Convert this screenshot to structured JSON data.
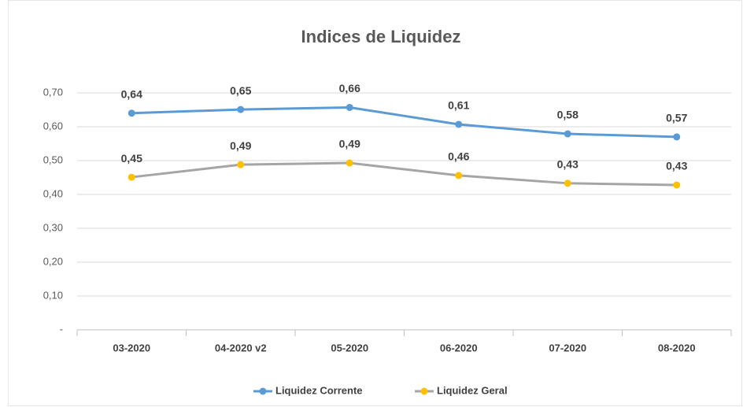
{
  "chart_data": {
    "type": "line",
    "title": "Indices de Liquidez",
    "categories": [
      "03-2020",
      "04-2020 v2",
      "05-2020",
      "06-2020",
      "07-2020",
      "08-2020"
    ],
    "series": [
      {
        "name": "Liquidez Corrente",
        "color": "#5b9bd5",
        "marker_color": "#5b9bd5",
        "values": [
          0.64,
          0.651,
          0.657,
          0.607,
          0.579,
          0.57
        ],
        "value_labels": [
          "0,64",
          "0,65",
          "0,66",
          "0,61",
          "0,58",
          "0,57"
        ]
      },
      {
        "name": "Liquidez Geral",
        "color": "#a5a5a5",
        "marker_color": "#ffc000",
        "values": [
          0.451,
          0.488,
          0.493,
          0.456,
          0.433,
          0.428
        ],
        "value_labels": [
          "0,45",
          "0,49",
          "0,49",
          "0,46",
          "0,43",
          "0,43"
        ]
      }
    ],
    "ylim": [
      0,
      0.7
    ],
    "yticks": [
      {
        "value": 0,
        "label": "-"
      },
      {
        "value": 0.1,
        "label": "0,10"
      },
      {
        "value": 0.2,
        "label": "0,20"
      },
      {
        "value": 0.3,
        "label": "0,30"
      },
      {
        "value": 0.4,
        "label": "0,40"
      },
      {
        "value": 0.5,
        "label": "0,50"
      },
      {
        "value": 0.6,
        "label": "0,60"
      },
      {
        "value": 0.7,
        "label": "0,70"
      }
    ],
    "grid": true,
    "legend": "bottom"
  }
}
